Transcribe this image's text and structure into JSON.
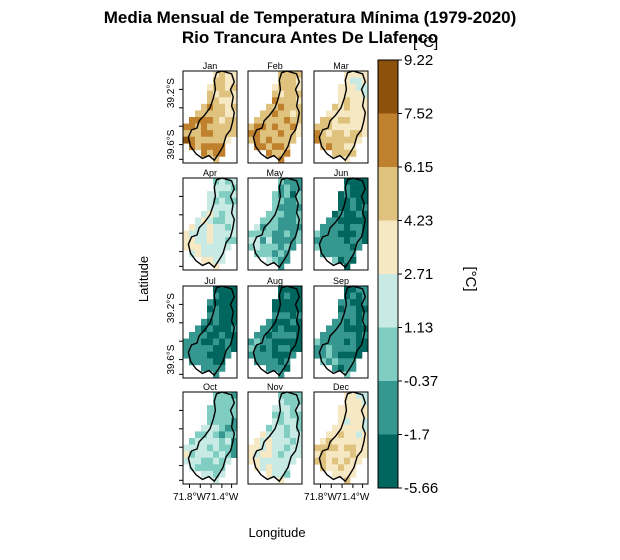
{
  "chart_data": {
    "type": "heatmap",
    "title": "Media Mensual de Temperatura Mínima (1979-2020)",
    "subtitle": "Rio Trancura Antes De Llafenco",
    "xlabel": "Longitude",
    "ylabel": "Latitude",
    "x_ticks": [
      "71.8°W",
      "71.4°W"
    ],
    "y_ticks": [
      "39.2°S",
      "39.6°S"
    ],
    "legend": {
      "title": "[°C]",
      "breaks": [
        "9.22",
        "7.52",
        "6.15",
        "4.23",
        "2.71",
        "1.13",
        "-0.37",
        "-1.7",
        "-5.66"
      ],
      "colors": [
        "#8c510a",
        "#bf812d",
        "#dfc27d",
        "#f6e8c3",
        "#c7eae5",
        "#80cdc1",
        "#35978f",
        "#01665e"
      ]
    },
    "panels": [
      {
        "month": "Jan",
        "level": 1.6
      },
      {
        "month": "Feb",
        "level": 1.5
      },
      {
        "month": "Mar",
        "level": 2.3
      },
      {
        "month": "Apr",
        "level": 3.6
      },
      {
        "month": "May",
        "level": 5.0
      },
      {
        "month": "Jun",
        "level": 6.1
      },
      {
        "month": "Jul",
        "level": 6.3
      },
      {
        "month": "Aug",
        "level": 6.2
      },
      {
        "month": "Sep",
        "level": 5.9
      },
      {
        "month": "Oct",
        "level": 4.4
      },
      {
        "month": "Nov",
        "level": 3.8
      },
      {
        "month": "Dec",
        "level": 2.6
      }
    ]
  }
}
